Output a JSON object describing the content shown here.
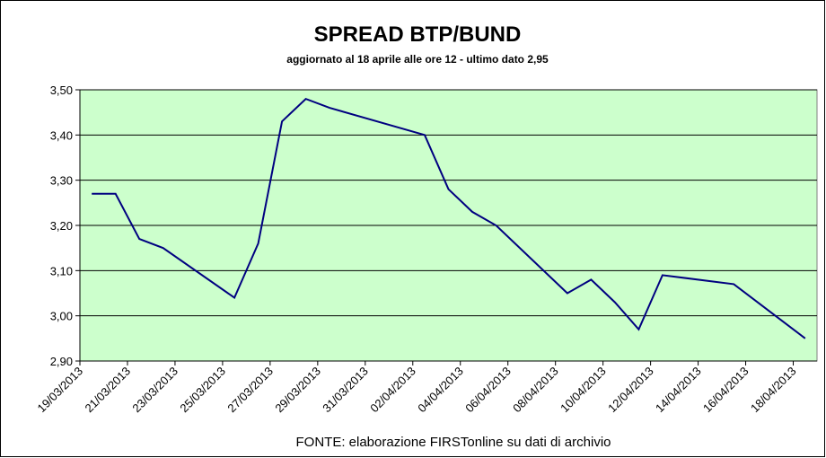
{
  "chart_data": {
    "type": "line",
    "title": "SPREAD  BTP/BUND",
    "subtitle": "aggiornato al 18 aprile alle ore 12 - ultimo dato 2,95",
    "source": "FONTE: elaborazione FIRSTonline su dati di archivio",
    "x": [
      "19/03/2013",
      "20/03/2013",
      "21/03/2013",
      "22/03/2013",
      "25/03/2013",
      "26/03/2013",
      "27/03/2013",
      "28/03/2013",
      "29/03/2013",
      "02/04/2013",
      "03/04/2013",
      "04/04/2013",
      "05/04/2013",
      "08/04/2013",
      "09/04/2013",
      "10/04/2013",
      "11/04/2013",
      "12/04/2013",
      "15/04/2013",
      "16/04/2013",
      "17/04/2013",
      "18/04/2013"
    ],
    "series": [
      {
        "name": "Spread",
        "color": "#000080",
        "values": [
          3.27,
          3.27,
          3.17,
          3.15,
          3.04,
          3.16,
          3.43,
          3.48,
          3.46,
          3.4,
          3.28,
          3.23,
          3.2,
          3.05,
          3.08,
          3.03,
          2.97,
          3.09,
          3.07,
          3.03,
          2.99,
          2.95
        ]
      }
    ],
    "xlim": [
      "19/03/2013",
      "19/04/2013"
    ],
    "xticks": [
      "19/03/2013",
      "21/03/2013",
      "23/03/2013",
      "25/03/2013",
      "27/03/2013",
      "29/03/2013",
      "31/03/2013",
      "02/04/2013",
      "04/04/2013",
      "06/04/2013",
      "08/04/2013",
      "10/04/2013",
      "12/04/2013",
      "14/04/2013",
      "16/04/2013",
      "18/04/2013"
    ],
    "ylim": [
      2.9,
      3.5
    ],
    "yticks": [
      {
        "value": 2.9,
        "label": "2,90"
      },
      {
        "value": 3.0,
        "label": "3,00"
      },
      {
        "value": 3.1,
        "label": "3,10"
      },
      {
        "value": 3.2,
        "label": "3,20"
      },
      {
        "value": 3.3,
        "label": "3,30"
      },
      {
        "value": 3.4,
        "label": "3,40"
      },
      {
        "value": 3.5,
        "label": "3,50"
      }
    ],
    "grid": true,
    "plot_background": "#ccffcc"
  }
}
